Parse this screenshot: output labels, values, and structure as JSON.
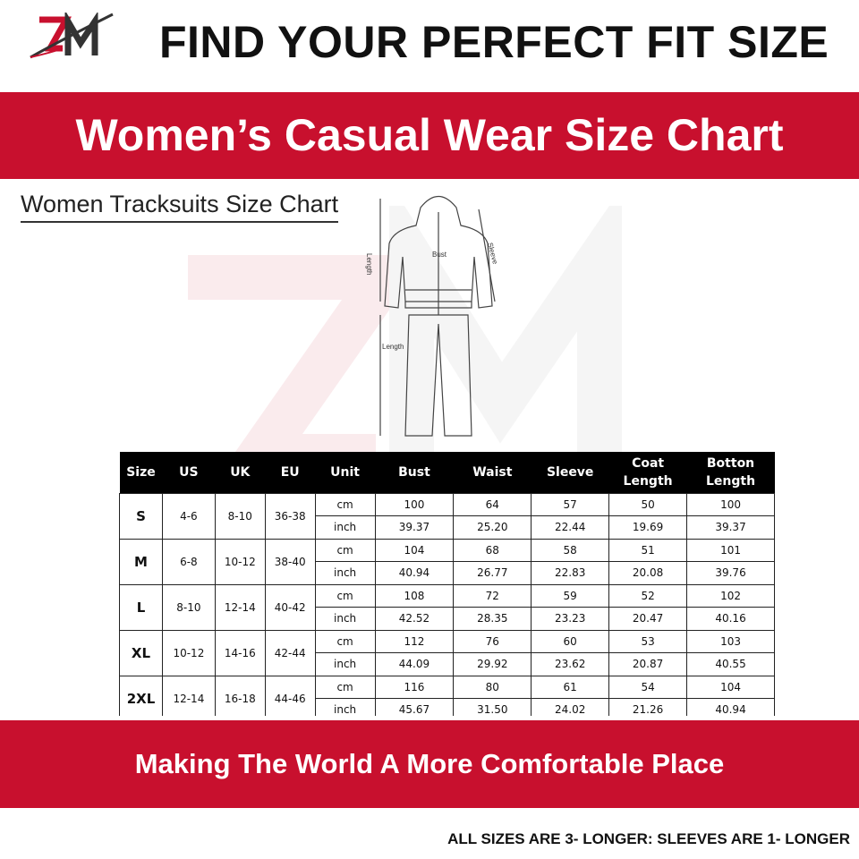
{
  "brand": {
    "logo_text": "ZM",
    "colors": {
      "red": "#c8102e",
      "dark": "#333333"
    }
  },
  "header": {
    "title": "FIND YOUR PERFECT FIT SIZE"
  },
  "banner": {
    "title": "Women’s Casual Wear Size Chart"
  },
  "chart_subtitle": "Women Tracksuits Size Chart",
  "diagram": {
    "labels": {
      "coat_length": "Length",
      "bust": "Bust",
      "sleeve": "Sleeve",
      "pants_length": "Length"
    }
  },
  "table": {
    "headers": [
      "Size",
      "US",
      "UK",
      "EU",
      "Unit",
      "Bust",
      "Waist",
      "Sleeve",
      "Coat Length",
      "Botton Length"
    ],
    "rows": [
      {
        "size": "S",
        "us": "4-6",
        "uk": "8-10",
        "eu": "36-38",
        "cm": [
          "100",
          "64",
          "57",
          "50",
          "100"
        ],
        "inch": [
          "39.37",
          "25.20",
          "22.44",
          "19.69",
          "39.37"
        ]
      },
      {
        "size": "M",
        "us": "6-8",
        "uk": "10-12",
        "eu": "38-40",
        "cm": [
          "104",
          "68",
          "58",
          "51",
          "101"
        ],
        "inch": [
          "40.94",
          "26.77",
          "22.83",
          "20.08",
          "39.76"
        ]
      },
      {
        "size": "L",
        "us": "8-10",
        "uk": "12-14",
        "eu": "40-42",
        "cm": [
          "108",
          "72",
          "59",
          "52",
          "102"
        ],
        "inch": [
          "42.52",
          "28.35",
          "23.23",
          "20.47",
          "40.16"
        ]
      },
      {
        "size": "XL",
        "us": "10-12",
        "uk": "14-16",
        "eu": "42-44",
        "cm": [
          "112",
          "76",
          "60",
          "53",
          "103"
        ],
        "inch": [
          "44.09",
          "29.92",
          "23.62",
          "20.87",
          "40.55"
        ]
      },
      {
        "size": "2XL",
        "us": "12-14",
        "uk": "16-18",
        "eu": "44-46",
        "cm": [
          "116",
          "80",
          "61",
          "54",
          "104"
        ],
        "inch": [
          "45.67",
          "31.50",
          "24.02",
          "21.26",
          "40.94"
        ]
      }
    ],
    "units": {
      "cm": "cm",
      "inch": "inch"
    }
  },
  "tagline": "Making The World A More Comfortable Place",
  "footer_note": "ALL SIZES ARE 3- LONGER: SLEEVES ARE 1- LONGER"
}
